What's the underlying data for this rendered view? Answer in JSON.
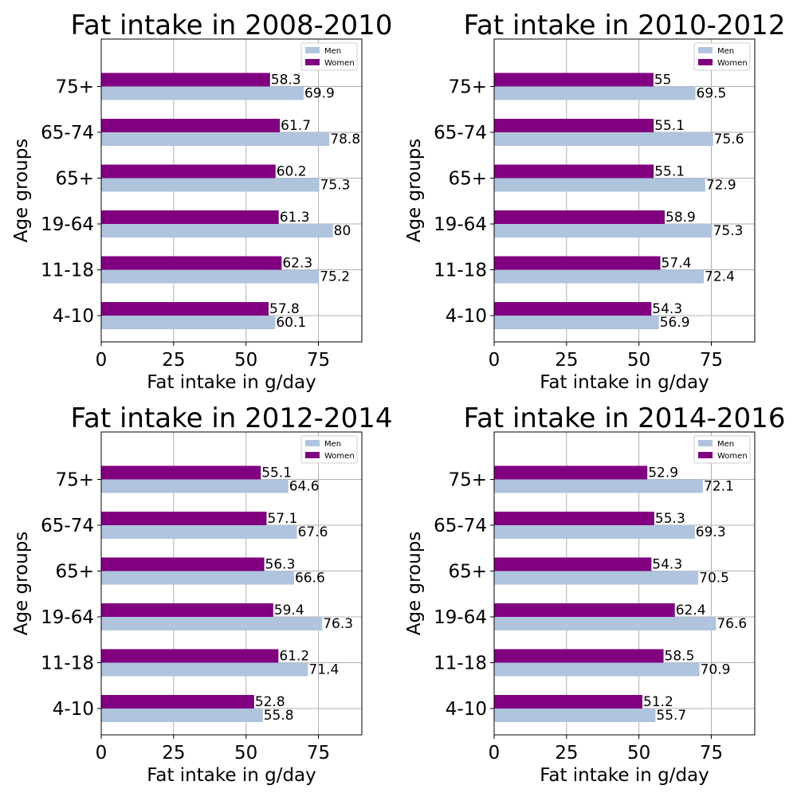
{
  "chart_data": [
    {
      "type": "bar",
      "orientation": "horizontal",
      "title": "Fat intake in 2008-2010",
      "xlabel": "Fat intake in g/day",
      "ylabel": "Age groups",
      "categories": [
        "4-10",
        "11-18",
        "19-64",
        "65+",
        "65-74",
        "75+"
      ],
      "series": [
        {
          "name": "Men",
          "values": [
            60.1,
            75.2,
            80.0,
            75.3,
            78.8,
            69.9
          ],
          "color": "#b0c4de"
        },
        {
          "name": "Women",
          "values": [
            57.8,
            62.3,
            61.3,
            60.2,
            61.7,
            58.3
          ],
          "color": "#800080"
        }
      ],
      "xlim": [
        0,
        90
      ],
      "xticks": [
        0,
        25,
        50,
        75
      ],
      "grid": true,
      "legend": "top-right"
    },
    {
      "type": "bar",
      "orientation": "horizontal",
      "title": "Fat intake in 2010-2012",
      "xlabel": "Fat intake in g/day",
      "ylabel": "Age groups",
      "categories": [
        "4-10",
        "11-18",
        "19-64",
        "65+",
        "65-74",
        "75+"
      ],
      "series": [
        {
          "name": "Men",
          "values": [
            56.9,
            72.4,
            75.3,
            72.9,
            75.6,
            69.5
          ],
          "color": "#b0c4de"
        },
        {
          "name": "Women",
          "values": [
            54.3,
            57.4,
            58.9,
            55.1,
            55.1,
            55.0
          ],
          "color": "#800080"
        }
      ],
      "xlim": [
        0,
        90
      ],
      "xticks": [
        0,
        25,
        50,
        75
      ],
      "grid": true,
      "legend": "top-right"
    },
    {
      "type": "bar",
      "orientation": "horizontal",
      "title": "Fat intake in 2012-2014",
      "xlabel": "Fat intake in g/day",
      "ylabel": "Age groups",
      "categories": [
        "4-10",
        "11-18",
        "19-64",
        "65+",
        "65-74",
        "75+"
      ],
      "series": [
        {
          "name": "Men",
          "values": [
            55.8,
            71.4,
            76.3,
            66.6,
            67.6,
            64.6
          ],
          "color": "#b0c4de"
        },
        {
          "name": "Women",
          "values": [
            52.8,
            61.2,
            59.4,
            56.3,
            57.1,
            55.1
          ],
          "color": "#800080"
        }
      ],
      "xlim": [
        0,
        90
      ],
      "xticks": [
        0,
        25,
        50,
        75
      ],
      "grid": true,
      "legend": "top-right"
    },
    {
      "type": "bar",
      "orientation": "horizontal",
      "title": "Fat intake in 2014-2016",
      "xlabel": "Fat intake in g/day",
      "ylabel": "Age groups",
      "categories": [
        "4-10",
        "11-18",
        "19-64",
        "65+",
        "65-74",
        "75+"
      ],
      "series": [
        {
          "name": "Men",
          "values": [
            55.7,
            70.9,
            76.6,
            70.5,
            69.3,
            72.1
          ],
          "color": "#b0c4de"
        },
        {
          "name": "Women",
          "values": [
            51.2,
            58.5,
            62.4,
            54.3,
            55.3,
            52.9
          ],
          "color": "#800080"
        }
      ],
      "xlim": [
        0,
        90
      ],
      "xticks": [
        0,
        25,
        50,
        75
      ],
      "grid": true,
      "legend": "top-right"
    }
  ]
}
